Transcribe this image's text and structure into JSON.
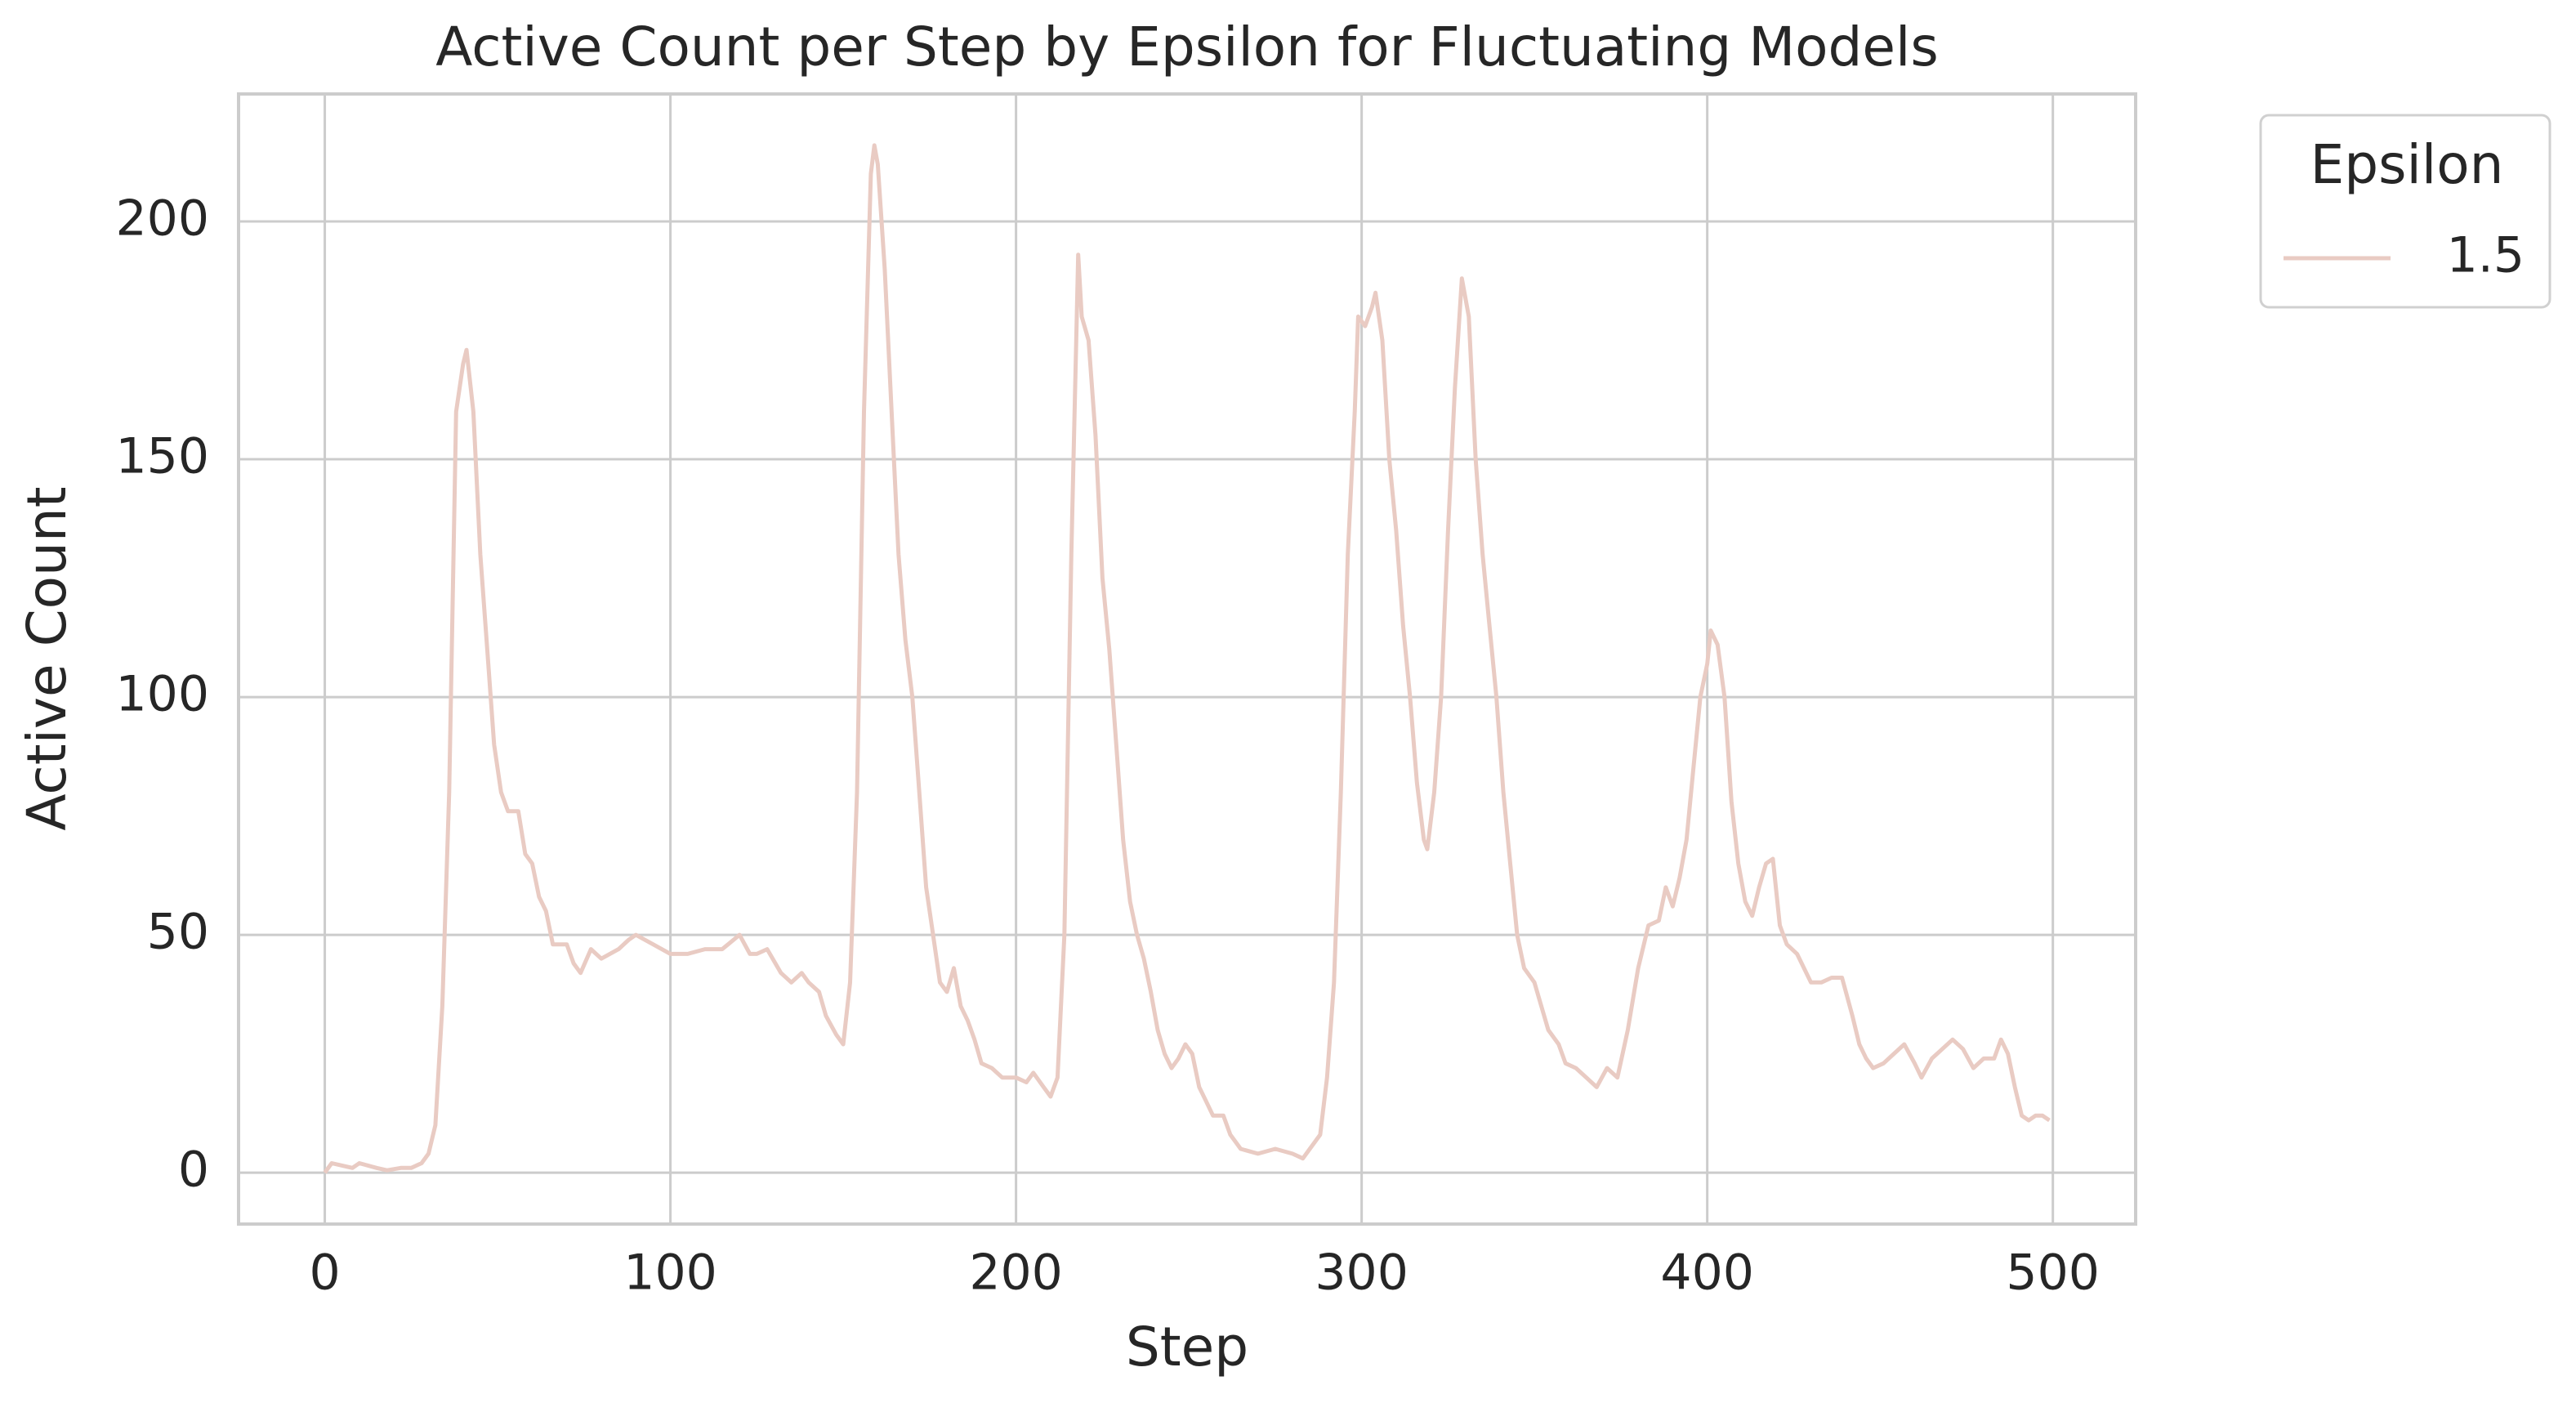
{
  "chart_data": {
    "type": "line",
    "title": "Active Count per Step by Epsilon for Fluctuating Models",
    "x_label": "Step",
    "y_label": "Active Count",
    "legend_title": "Epsilon",
    "legend_position": "outside upper right",
    "grid": true,
    "xlim": [
      -24.95,
      523.95
    ],
    "xticks": [
      0,
      100,
      200,
      300,
      400,
      500
    ],
    "ylim": [
      -10.8,
      226.8
    ],
    "yticks": [
      0,
      50,
      100,
      150,
      200
    ],
    "x": [
      0,
      2,
      5,
      8,
      10,
      15,
      18,
      22,
      25,
      28,
      30,
      32,
      34,
      36,
      38,
      40,
      41,
      43,
      45,
      47,
      49,
      51,
      53,
      56,
      58,
      60,
      62,
      64,
      66,
      70,
      72,
      74,
      77,
      80,
      85,
      88,
      90,
      95,
      100,
      105,
      110,
      115,
      120,
      123,
      125,
      128,
      132,
      135,
      138,
      140,
      143,
      145,
      148,
      150,
      152,
      154,
      156,
      158,
      159,
      160,
      162,
      164,
      166,
      168,
      170,
      172,
      174,
      176,
      178,
      180,
      182,
      184,
      186,
      188,
      190,
      193,
      196,
      200,
      203,
      205,
      208,
      210,
      212,
      214,
      216,
      218,
      219,
      221,
      223,
      225,
      227,
      229,
      231,
      233,
      235,
      237,
      239,
      241,
      243,
      245,
      247,
      249,
      251,
      253,
      255,
      257,
      260,
      262,
      265,
      270,
      275,
      280,
      283,
      285,
      288,
      290,
      292,
      294,
      296,
      298,
      299,
      301,
      303,
      304,
      306,
      308,
      310,
      312,
      314,
      316,
      318,
      319,
      321,
      323,
      325,
      327,
      329,
      331,
      333,
      335,
      337,
      339,
      341,
      343,
      345,
      347,
      350,
      352,
      354,
      357,
      359,
      362,
      365,
      368,
      371,
      374,
      377,
      380,
      383,
      386,
      388,
      390,
      392,
      394,
      396,
      398,
      400,
      401,
      403,
      405,
      407,
      409,
      411,
      413,
      415,
      417,
      419,
      421,
      423,
      426,
      430,
      433,
      436,
      439,
      442,
      444,
      446,
      448,
      451,
      454,
      457,
      460,
      462,
      465,
      468,
      471,
      474,
      477,
      480,
      483,
      485,
      487,
      489,
      491,
      493,
      495,
      497,
      499
    ],
    "series": [
      {
        "name": "1.5",
        "color": "#e9cbc3",
        "values": [
          0,
          2,
          1.5,
          1,
          2,
          1,
          0.5,
          1,
          1,
          2,
          4,
          10,
          35,
          80,
          160,
          170,
          173,
          160,
          130,
          110,
          90,
          80,
          76,
          76,
          67,
          65,
          58,
          55,
          48,
          48,
          44,
          42,
          47,
          45,
          47,
          49,
          50,
          48,
          46,
          46,
          47,
          47,
          50,
          46,
          46,
          47,
          42,
          40,
          42,
          40,
          38,
          33,
          29,
          27,
          40,
          80,
          160,
          210,
          216,
          212,
          190,
          160,
          130,
          112,
          100,
          80,
          60,
          50,
          40,
          38,
          43,
          35,
          32,
          28,
          23,
          22,
          20,
          20,
          19,
          21,
          18,
          16,
          20,
          50,
          130,
          193,
          180,
          175,
          155,
          125,
          110,
          90,
          70,
          57,
          50,
          45,
          38,
          30,
          25,
          22,
          24,
          27,
          25,
          18,
          15,
          12,
          12,
          8,
          5,
          4,
          5,
          4,
          3,
          5,
          8,
          20,
          40,
          80,
          130,
          160,
          180,
          178,
          182,
          185,
          175,
          150,
          135,
          115,
          100,
          82,
          70,
          68,
          80,
          100,
          135,
          165,
          188,
          180,
          150,
          130,
          115,
          100,
          80,
          65,
          50,
          43,
          40,
          35,
          30,
          27,
          23,
          22,
          20,
          18,
          22,
          20,
          30,
          43,
          52,
          53,
          60,
          56,
          62,
          70,
          85,
          100,
          107,
          114,
          111,
          100,
          78,
          65,
          57,
          54,
          60,
          65,
          66,
          52,
          48,
          46,
          40,
          40,
          41,
          41,
          33,
          27,
          24,
          22,
          23,
          25,
          27,
          23,
          20,
          24,
          26,
          28,
          26,
          22,
          24,
          24,
          28,
          25,
          18,
          12,
          11,
          12,
          12,
          11
        ]
      }
    ]
  }
}
